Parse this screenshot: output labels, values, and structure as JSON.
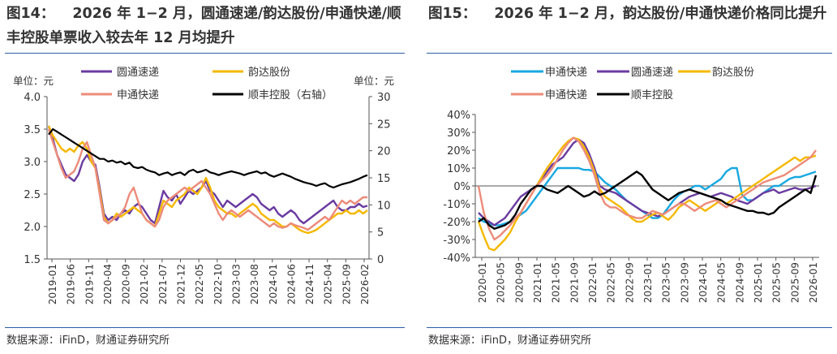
{
  "left": {
    "fig_no": "图14：",
    "title": "2026 年 1−2 月，圆通速递/韵达股份/申通快递/顺丰控股单票收入较去年 12 月均提升",
    "source": "数据来源：iFinD，财通证券研究所",
    "chart_data": {
      "type": "line",
      "ylabel_left": "单位：元",
      "ylabel_right": "单位：元",
      "ylim_left": [
        1.5,
        4.0
      ],
      "ylim_right": [
        0,
        30
      ],
      "yticks_left": [
        "4.0",
        "3.5",
        "3.0",
        "2.5",
        "2.0",
        "1.5"
      ],
      "yticks_right": [
        "30",
        "25",
        "20",
        "15",
        "10",
        "5",
        "0"
      ],
      "xticks": [
        "2019-01",
        "2019-06",
        "2019-11",
        "2020-04",
        "2020-09",
        "2021-02",
        "2021-07",
        "2021-12",
        "2022-05",
        "2022-10",
        "2023-03",
        "2023-08",
        "2024-01",
        "2024-06",
        "2024-11",
        "2025-04",
        "2025-09",
        "2026-02"
      ],
      "legend": [
        "圆通速递",
        "韵达股份",
        "申通快递",
        "顺丰控股（右轴）"
      ],
      "colors": [
        "#6a3ba0",
        "#f5b800",
        "#ec8b7a",
        "#000000"
      ],
      "series": [
        {
          "name": "圆通速递",
          "axis": "left",
          "values": [
            3.55,
            3.35,
            3.1,
            2.95,
            2.8,
            2.75,
            2.7,
            2.8,
            3.0,
            3.1,
            3.0,
            2.95,
            2.6,
            2.2,
            2.1,
            2.15,
            2.1,
            2.2,
            2.25,
            2.2,
            2.3,
            2.35,
            2.3,
            2.2,
            2.1,
            2.05,
            2.3,
            2.55,
            2.45,
            2.4,
            2.5,
            2.35,
            2.45,
            2.55,
            2.5,
            2.55,
            2.6,
            2.7,
            2.55,
            2.5,
            2.4,
            2.3,
            2.4,
            2.35,
            2.3,
            2.35,
            2.4,
            2.45,
            2.5,
            2.45,
            2.35,
            2.3,
            2.25,
            2.3,
            2.2,
            2.15,
            2.2,
            2.25,
            2.2,
            2.1,
            2.05,
            2.1,
            2.15,
            2.2,
            2.25,
            2.3,
            2.35,
            2.4,
            2.3,
            2.25,
            2.25,
            2.3,
            2.3,
            2.35,
            2.3,
            2.32
          ]
        },
        {
          "name": "韵达股份",
          "axis": "left",
          "values": [
            3.55,
            3.4,
            3.3,
            3.2,
            3.15,
            3.2,
            3.15,
            3.25,
            3.3,
            3.2,
            3.0,
            2.9,
            2.55,
            2.15,
            2.05,
            2.1,
            2.2,
            2.15,
            2.2,
            2.25,
            2.3,
            2.25,
            2.2,
            2.1,
            2.05,
            2.0,
            2.2,
            2.4,
            2.35,
            2.3,
            2.4,
            2.45,
            2.5,
            2.6,
            2.55,
            2.5,
            2.6,
            2.75,
            2.6,
            2.4,
            2.3,
            2.25,
            2.2,
            2.2,
            2.15,
            2.2,
            2.25,
            2.3,
            2.35,
            2.3,
            2.2,
            2.15,
            2.1,
            2.1,
            2.05,
            2.0,
            2.0,
            2.05,
            2.0,
            1.95,
            1.92,
            1.9,
            1.92,
            1.95,
            2.0,
            2.05,
            2.1,
            2.15,
            2.2,
            2.2,
            2.25,
            2.2,
            2.2,
            2.25,
            2.2,
            2.25
          ]
        },
        {
          "name": "申通快递",
          "axis": "left",
          "values": [
            3.5,
            3.3,
            3.1,
            2.9,
            2.75,
            2.8,
            2.85,
            3.0,
            3.2,
            3.3,
            3.1,
            2.9,
            2.5,
            2.1,
            2.05,
            2.1,
            2.15,
            2.2,
            2.3,
            2.5,
            2.6,
            2.4,
            2.2,
            2.1,
            2.05,
            2.0,
            2.1,
            2.3,
            2.4,
            2.45,
            2.5,
            2.55,
            2.6,
            2.55,
            2.6,
            2.65,
            2.7,
            2.6,
            2.5,
            2.35,
            2.2,
            2.1,
            2.2,
            2.25,
            2.2,
            2.15,
            2.2,
            2.25,
            2.2,
            2.15,
            2.1,
            2.05,
            2.0,
            2.05,
            2.0,
            1.98,
            2.0,
            2.05,
            2.02,
            2.0,
            1.98,
            1.95,
            2.0,
            2.05,
            2.1,
            2.15,
            2.1,
            2.2,
            2.3,
            2.4,
            2.35,
            2.4,
            2.35,
            2.4,
            2.45,
            2.45
          ]
        },
        {
          "name": "顺丰控股（右轴）",
          "axis": "right",
          "values": [
            23,
            24,
            23.5,
            23,
            22.5,
            22,
            21.5,
            21,
            20.5,
            20,
            19.5,
            19,
            18.5,
            18.5,
            18,
            18.2,
            17.8,
            18,
            17.5,
            17.8,
            17,
            16.8,
            17,
            16.5,
            16.2,
            16,
            15.5,
            15.8,
            16,
            15.5,
            15.8,
            16,
            15.5,
            16.2,
            16.5,
            16,
            16.2,
            16.5,
            16,
            15.8,
            15.5,
            15.8,
            16,
            16.2,
            16,
            15.8,
            15.5,
            15.8,
            16,
            16.2,
            15.8,
            16,
            15.5,
            15.2,
            15.5,
            15.8,
            15.5,
            15.2,
            14.8,
            14.5,
            14.2,
            14,
            13.8,
            13.5,
            13.8,
            14,
            13.5,
            13.2,
            13.5,
            13.8,
            14,
            14.2,
            14.5,
            14.8,
            15.2,
            15.5
          ]
        }
      ]
    }
  },
  "right": {
    "fig_no": "图15：",
    "title": "2026 年 1−2 月，韵达股份/申通快递价格同比提升",
    "source": "数据来源：iFinD，财通证券研究所",
    "chart_data": {
      "type": "line",
      "ylim": [
        -40,
        40
      ],
      "yticks": [
        "40%",
        "30%",
        "20%",
        "10%",
        "0%",
        "-10%",
        "-20%",
        "-30%",
        "-40%"
      ],
      "xticks": [
        "2020-01",
        "2020-05",
        "2020-09",
        "2021-01",
        "2021-05",
        "2021-09",
        "2022-01",
        "2022-05",
        "2022-09",
        "2023-01",
        "2023-05",
        "2023-09",
        "2024-01",
        "2024-05",
        "2024-09",
        "2025-01",
        "2025-05",
        "2025-09",
        "2026-01"
      ],
      "legend": [
        "申通快递",
        "圆通速递",
        "韵达股份",
        "申通快递",
        "顺丰控股"
      ],
      "colors": [
        "#18a8e0",
        "#6a3ba0",
        "#f5b800",
        "#ec8b7a",
        "#000000"
      ],
      "series": [
        {
          "name": "申通快递",
          "color": "#18a8e0",
          "values": [
            -18,
            -20,
            -21,
            -22,
            -22,
            -21,
            -20,
            -18,
            -16,
            -14,
            -10,
            -6,
            -2,
            2,
            6,
            10,
            10,
            10,
            10,
            10,
            9,
            9,
            8,
            5,
            2,
            0,
            -2,
            -5,
            -8,
            -10,
            -12,
            -14,
            -16,
            -18,
            -18,
            -16,
            -12,
            -8,
            -5,
            -3,
            -2,
            0,
            0,
            -2,
            0,
            2,
            4,
            8,
            10,
            10,
            -5,
            -8,
            -8,
            -6,
            -4,
            -2,
            0,
            0,
            2,
            4,
            5,
            5,
            6,
            7,
            8
          ]
        },
        {
          "name": "圆通速递",
          "color": "#6a3ba0",
          "values": [
            -15,
            -18,
            -20,
            -22,
            -20,
            -18,
            -14,
            -10,
            -6,
            -4,
            -2,
            0,
            4,
            8,
            12,
            14,
            16,
            20,
            24,
            26,
            24,
            18,
            10,
            0,
            -2,
            -3,
            -4,
            -6,
            -8,
            -10,
            -12,
            -14,
            -15,
            -16,
            -17,
            -16,
            -14,
            -12,
            -10,
            -8,
            -6,
            -5,
            -4,
            -5,
            -6,
            -5,
            -4,
            -5,
            -6,
            -8,
            -9,
            -10,
            -8,
            -6,
            -4,
            -3,
            -2,
            -4,
            -3,
            -2,
            -1,
            -2,
            -2,
            -1,
            0
          ]
        },
        {
          "name": "韵达股份",
          "color": "#f5b800",
          "values": [
            -20,
            -28,
            -35,
            -36,
            -33,
            -30,
            -26,
            -20,
            -15,
            -10,
            -5,
            0,
            5,
            10,
            14,
            18,
            22,
            25,
            27,
            26,
            22,
            16,
            8,
            -2,
            -6,
            -8,
            -10,
            -12,
            -15,
            -18,
            -20,
            -20,
            -18,
            -16,
            -15,
            -17,
            -19,
            -16,
            -12,
            -10,
            -8,
            -10,
            -12,
            -14,
            -12,
            -10,
            -8,
            -10,
            -8,
            -6,
            -4,
            -2,
            0,
            2,
            4,
            6,
            8,
            10,
            12,
            14,
            16,
            14,
            16,
            16,
            17
          ]
        },
        {
          "name": "申通快递",
          "color": "#ec8b7a",
          "values": [
            0,
            -15,
            -24,
            -30,
            -28,
            -25,
            -22,
            -18,
            -15,
            -10,
            -5,
            0,
            3,
            6,
            10,
            15,
            20,
            24,
            27,
            25,
            20,
            14,
            6,
            -4,
            -10,
            -12,
            -12,
            -14,
            -16,
            -17,
            -18,
            -18,
            -16,
            -14,
            -15,
            -16,
            -14,
            -12,
            -10,
            -10,
            -12,
            -14,
            -12,
            -10,
            -9,
            -8,
            -10,
            -12,
            -10,
            -8,
            -6,
            -4,
            -2,
            0,
            2,
            3,
            4,
            5,
            6,
            8,
            10,
            12,
            14,
            16,
            20
          ]
        },
        {
          "name": "顺丰控股",
          "color": "#000000",
          "values": [
            -20,
            -18,
            -22,
            -24,
            -23,
            -22,
            -20,
            -16,
            -10,
            -6,
            -2,
            0,
            0,
            -2,
            -3,
            -4,
            -2,
            0,
            -2,
            -4,
            -6,
            -5,
            -3,
            -5,
            -4,
            -2,
            0,
            2,
            4,
            6,
            8,
            6,
            2,
            -2,
            -4,
            -6,
            -8,
            -6,
            -4,
            -3,
            -2,
            -3,
            -4,
            -5,
            -6,
            -7,
            -8,
            -10,
            -11,
            -12,
            -13,
            -14,
            -14,
            -15,
            -15,
            -16,
            -15,
            -12,
            -10,
            -8,
            -6,
            -4,
            -2,
            -4,
            6
          ]
        }
      ]
    }
  }
}
